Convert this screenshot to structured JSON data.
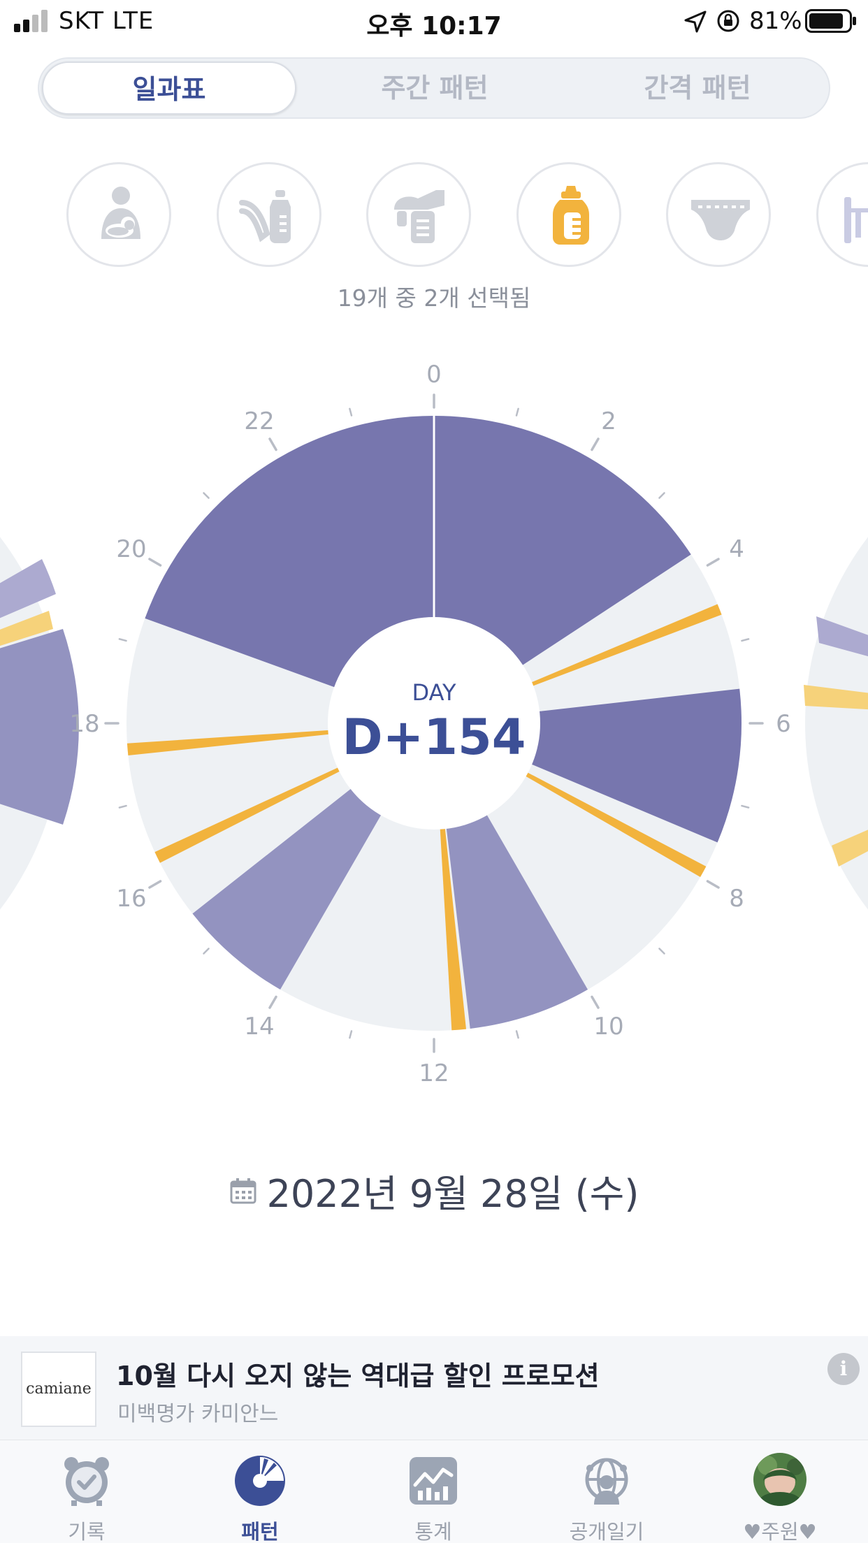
{
  "status_bar": {
    "carrier": "SKT   LTE",
    "time": "오후 10:17",
    "battery": "81%"
  },
  "segments": [
    {
      "label": "일과표",
      "active": true
    },
    {
      "label": "주간 패턴",
      "active": false
    },
    {
      "label": "간격 패턴",
      "active": false
    }
  ],
  "categories": [
    {
      "icon": "breastfeeding-icon",
      "selected": false
    },
    {
      "icon": "pumped-milk-bottle-icon",
      "selected": false
    },
    {
      "icon": "breast-pump-icon",
      "selected": false
    },
    {
      "icon": "formula-bottle-icon",
      "selected": true
    },
    {
      "icon": "diaper-icon",
      "selected": false
    },
    {
      "icon": "crib-icon",
      "selected": false
    }
  ],
  "selected_count": "19개 중 2개 선택됨",
  "clock": {
    "hour_labels": [
      "0",
      "2",
      "4",
      "6",
      "8",
      "10",
      "12",
      "14",
      "16",
      "18",
      "20",
      "22"
    ],
    "day_label": "DAY",
    "day_value": "D+154",
    "colors": {
      "sleep_dark": "#7776ae",
      "sleep_light": "#9393c0",
      "feeding": "#f2b33d",
      "empty": "#eef1f4"
    },
    "sleep_sessions": [
      {
        "start": 0.0,
        "end": 3.78,
        "shade": "dark"
      },
      {
        "start": 5.57,
        "end": 7.52,
        "shade": "dark"
      },
      {
        "start": 10.0,
        "end": 11.55,
        "shade": "light"
      },
      {
        "start": 14.0,
        "end": 15.45,
        "shade": "light"
      },
      {
        "start": 19.33,
        "end": 24.0,
        "shade": "dark"
      }
    ],
    "feedings": [
      {
        "start": 4.48,
        "end": 4.62
      },
      {
        "start": 7.85,
        "end": 8.0
      },
      {
        "start": 11.6,
        "end": 11.78
      },
      {
        "start": 16.2,
        "end": 16.35
      },
      {
        "start": 17.6,
        "end": 17.75
      }
    ]
  },
  "date": {
    "text": "2022년 9월 28일 (수)"
  },
  "ad": {
    "logo_text": "camiane",
    "title": "10월 다시 오지 않는 역대급 할인 프로모션",
    "advertiser": "미백명가 카미안느",
    "info": "i"
  },
  "tabs": [
    {
      "label": "기록",
      "icon": "alarm-clock-icon",
      "active": false
    },
    {
      "label": "패턴",
      "icon": "pattern-chart-icon",
      "active": true
    },
    {
      "label": "통계",
      "icon": "stats-graph-icon",
      "active": false
    },
    {
      "label": "공개일기",
      "icon": "public-diary-icon",
      "active": false
    },
    {
      "label": "♥주원♥",
      "icon": "baby-avatar",
      "active": false
    }
  ]
}
